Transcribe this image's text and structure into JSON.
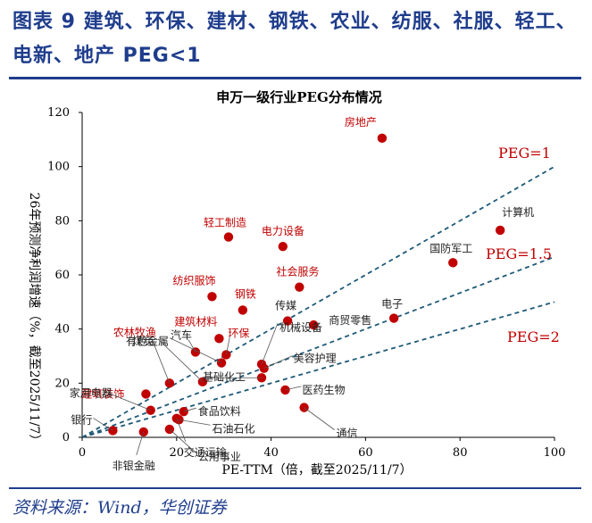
{
  "figure": {
    "title": "图表 9   建筑、环保、建材、钢铁、农业、纺服、社服、轻工、电新、地产 PEG<1",
    "source": "资料来源：Wind，华创证券"
  },
  "chart_data": {
    "type": "scatter",
    "title": "申万一级行业PEG分布情况",
    "xlabel": "PE-TTM（倍，截至2025/11/7）",
    "ylabel": "26年预测净利润增速（%，截至2025/11/7）",
    "xlim": [
      0,
      100
    ],
    "ylim": [
      0,
      120
    ],
    "xticks": [
      0,
      20,
      40,
      60,
      80,
      100
    ],
    "yticks": [
      0,
      20,
      40,
      60,
      80,
      100,
      120
    ],
    "point_color": "#c00000",
    "highlight_label_color": "#c00000",
    "normal_label_color": "#222222",
    "reference_line_color": "#1f5a78",
    "reference_lines": [
      {
        "label": "PEG=1",
        "slope": 1.0
      },
      {
        "label": "PEG=1.5",
        "slope": 0.6667
      },
      {
        "label": "PEG=2",
        "slope": 0.5
      }
    ],
    "points": [
      {
        "name": "房地产",
        "x": 63.5,
        "y": 110.5,
        "highlight": true
      },
      {
        "name": "计算机",
        "x": 88.5,
        "y": 76.5,
        "highlight": false
      },
      {
        "name": "国防军工",
        "x": 78.5,
        "y": 64.5,
        "highlight": false
      },
      {
        "name": "轻工制造",
        "x": 31.0,
        "y": 74.0,
        "highlight": true
      },
      {
        "name": "电力设备",
        "x": 42.5,
        "y": 70.5,
        "highlight": true
      },
      {
        "name": "社会服务",
        "x": 46.0,
        "y": 55.5,
        "highlight": true
      },
      {
        "name": "纺织服饰",
        "x": 27.5,
        "y": 52.0,
        "highlight": true
      },
      {
        "name": "钢铁",
        "x": 34.0,
        "y": 47.0,
        "highlight": true
      },
      {
        "name": "传媒",
        "x": 43.5,
        "y": 43.0,
        "highlight": false
      },
      {
        "name": "商贸零售",
        "x": 49.0,
        "y": 41.5,
        "highlight": false
      },
      {
        "name": "电子",
        "x": 66.0,
        "y": 44.0,
        "highlight": false
      },
      {
        "name": "建筑材料",
        "x": 29.0,
        "y": 36.5,
        "highlight": true
      },
      {
        "name": "汽车",
        "x": 24.0,
        "y": 31.5,
        "highlight": false
      },
      {
        "name": "环保",
        "x": 30.5,
        "y": 30.5,
        "highlight": true
      },
      {
        "name": "农林牧渔",
        "x": 18.5,
        "y": 20.0,
        "highlight": true
      },
      {
        "name": "有色金属",
        "x": 29.5,
        "y": 27.5,
        "highlight": false
      },
      {
        "name": "机械设备",
        "x": 38.0,
        "y": 27.0,
        "highlight": false
      },
      {
        "name": "美容护理",
        "x": 38.5,
        "y": 25.5,
        "highlight": false
      },
      {
        "name": "煤炭",
        "x": 25.5,
        "y": 20.5,
        "highlight": false
      },
      {
        "name": "基础化工",
        "x": 38.0,
        "y": 22.0,
        "highlight": false
      },
      {
        "name": "医药生物",
        "x": 43.0,
        "y": 17.5,
        "highlight": false
      },
      {
        "name": "建筑装饰",
        "x": 13.5,
        "y": 16.0,
        "highlight": true
      },
      {
        "name": "家用电器",
        "x": 14.5,
        "y": 10.0,
        "highlight": false
      },
      {
        "name": "食品饮料",
        "x": 21.5,
        "y": 9.5,
        "highlight": false
      },
      {
        "name": "通信",
        "x": 47.0,
        "y": 11.0,
        "highlight": false
      },
      {
        "name": "石油石化",
        "x": 20.5,
        "y": 6.5,
        "highlight": false
      },
      {
        "name": "银行",
        "x": 6.5,
        "y": 2.5,
        "highlight": false
      },
      {
        "name": "非银金融",
        "x": 13.0,
        "y": 2.0,
        "highlight": false
      },
      {
        "name": "公用事业",
        "x": 18.5,
        "y": 3.0,
        "highlight": false
      },
      {
        "name": "交通运输",
        "x": 20.0,
        "y": 7.0,
        "highlight": false
      }
    ]
  }
}
